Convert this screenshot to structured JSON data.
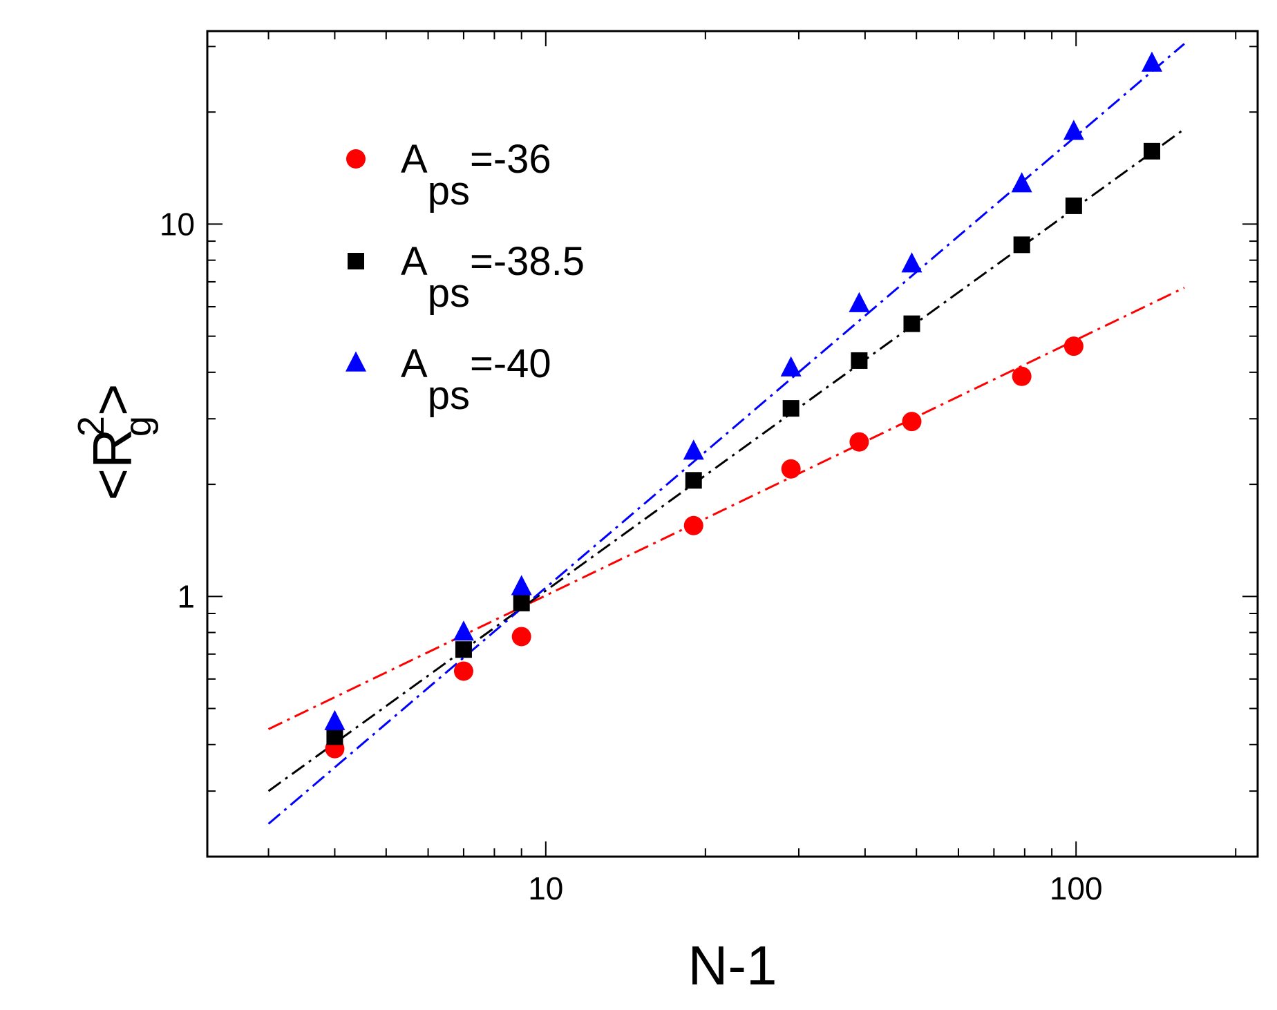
{
  "chart_data": {
    "type": "scatter",
    "title": "",
    "xlabel": "N-1",
    "ylabel": {
      "base": "<R",
      "sup": "2",
      "sub": "g",
      "close": ">"
    },
    "xscale": "log",
    "yscale": "log",
    "xlim": [
      2.3,
      220
    ],
    "ylim": [
      0.2,
      33
    ],
    "xticks": [
      {
        "value": 10,
        "label": "10"
      },
      {
        "value": 100,
        "label": "100"
      }
    ],
    "yticks": [
      {
        "value": 1,
        "label": "1"
      },
      {
        "value": 10,
        "label": "10"
      }
    ],
    "legend_position": "top-left",
    "series": [
      {
        "name": "A_ps=-36",
        "legend": {
          "main": "A",
          "sub": "ps",
          "value": "=-36"
        },
        "marker": "circle",
        "color": "#ff0000",
        "x": [
          4,
          7,
          9,
          19,
          29,
          39,
          49,
          79,
          99
        ],
        "y": [
          0.39,
          0.63,
          0.78,
          1.55,
          2.2,
          2.6,
          2.95,
          3.9,
          4.7
        ],
        "fit": {
          "x": [
            3,
            160
          ],
          "y": [
            0.44,
            6.75
          ]
        }
      },
      {
        "name": "A_ps=-38.5",
        "legend": {
          "main": "A",
          "sub": "ps",
          "value": "=-38.5"
        },
        "marker": "square",
        "color": "#000000",
        "x": [
          4,
          7,
          9,
          19,
          29,
          39,
          49,
          79,
          99,
          139
        ],
        "y": [
          0.42,
          0.72,
          0.96,
          2.05,
          3.2,
          4.3,
          5.4,
          8.8,
          11.2,
          15.7
        ],
        "fit": {
          "x": [
            3,
            160
          ],
          "y": [
            0.3,
            18.0
          ]
        }
      },
      {
        "name": "A_ps=-40",
        "legend": {
          "main": "A",
          "sub": "ps",
          "value": "=-40"
        },
        "marker": "triangle",
        "color": "#0000ff",
        "x": [
          4,
          7,
          9,
          19,
          29,
          39,
          49,
          79,
          99,
          139
        ],
        "y": [
          0.46,
          0.8,
          1.06,
          2.45,
          4.1,
          6.1,
          7.8,
          12.8,
          17.7,
          27.0
        ],
        "fit": {
          "x": [
            3,
            160
          ],
          "y": [
            0.245,
            30.5
          ]
        }
      }
    ]
  }
}
